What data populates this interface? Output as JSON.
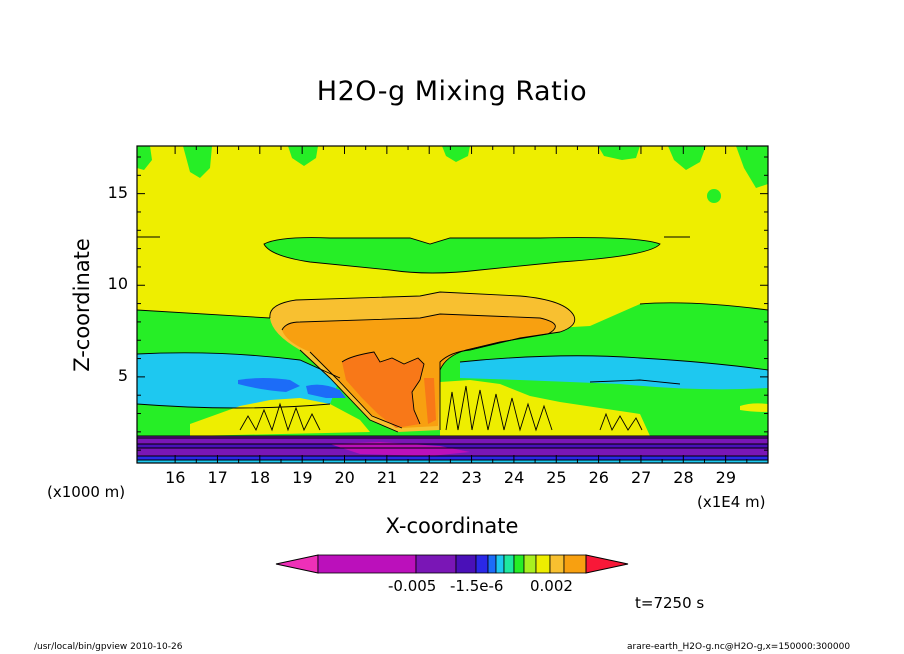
{
  "chart_data": {
    "type": "contour",
    "title": "H2O-g Mixing Ratio",
    "xlabel": "X-coordinate",
    "ylabel": "Z-coordinate",
    "x_unit_label": "(x1E4 m)",
    "y_unit_label": "(x1000 m)",
    "x_ticks": [
      16,
      17,
      18,
      19,
      20,
      21,
      22,
      23,
      24,
      25,
      26,
      27,
      28,
      29
    ],
    "y_ticks": [
      5,
      10,
      15
    ],
    "xlim": [
      15.1,
      30.0
    ],
    "ylim": [
      0.3,
      17.6
    ],
    "colorbar": {
      "colors": [
        "#ee30b8",
        "#bb10bb",
        "#7a16b6",
        "#4a10b8",
        "#2a28e8",
        "#1c6cf8",
        "#1ec8f0",
        "#1ee8a0",
        "#26ee26",
        "#a8f020",
        "#eeee00",
        "#f8c030",
        "#f8a010",
        "#f87818",
        "#f81838"
      ],
      "tick_labels": [
        "-0.005",
        "-1.5e-6",
        "0.002"
      ]
    },
    "time_label": "t=7250 s"
  },
  "footer": {
    "left": "/usr/local/bin/gpview  2010-10-26",
    "right": "arare-earth_H2O-g.nc@H2O-g,x=150000:300000"
  }
}
